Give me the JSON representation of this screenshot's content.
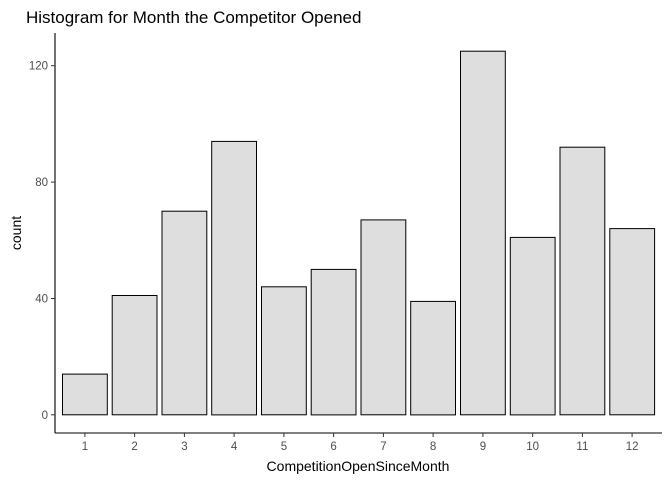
{
  "chart_data": {
    "type": "bar",
    "title": "Histogram for Month the Competitor Opened",
    "xlabel": "CompetitionOpenSinceMonth",
    "ylabel": "count",
    "categories": [
      "1",
      "2",
      "3",
      "4",
      "5",
      "6",
      "7",
      "8",
      "9",
      "10",
      "11",
      "12"
    ],
    "values": [
      14,
      41,
      70,
      94,
      44,
      50,
      67,
      39,
      125,
      61,
      92,
      64
    ],
    "yticks": [
      0,
      40,
      80,
      120
    ],
    "ylim": [
      -6.25,
      131.25
    ],
    "grid": false,
    "bar_fill": "#dedede",
    "bar_outline": "#000000"
  }
}
